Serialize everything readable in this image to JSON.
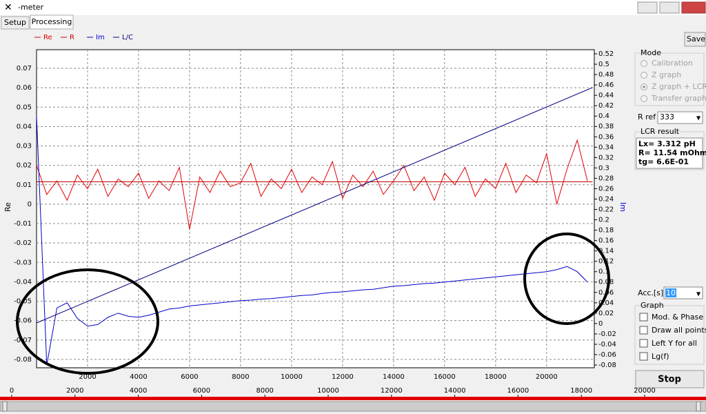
{
  "window": {
    "title": "-meter"
  },
  "tabs": [
    "Setup",
    "Processing"
  ],
  "chart_data": {
    "type": "line",
    "x": [
      0,
      400,
      800,
      1200,
      1600,
      2000,
      2400,
      2800,
      3200,
      3600,
      4000,
      4400,
      4800,
      5200,
      5600,
      6000,
      6400,
      6800,
      7200,
      7600,
      8000,
      8400,
      8800,
      9200,
      9600,
      10000,
      10400,
      10800,
      11200,
      11600,
      12000,
      12400,
      12800,
      13200,
      13600,
      14000,
      14400,
      14800,
      15200,
      15600,
      16000,
      16400,
      16800,
      17200,
      17600,
      18000,
      18400,
      18800,
      19200,
      19600,
      20000,
      20400,
      20800,
      21200,
      21600
    ],
    "series": [
      {
        "name": "Re",
        "color": "#e00000",
        "values": [
          0.02,
          0.005,
          0.012,
          0.002,
          0.015,
          0.008,
          0.018,
          0.004,
          0.013,
          0.009,
          0.016,
          0.003,
          0.012,
          0.007,
          0.019,
          -0.013,
          0.014,
          0.006,
          0.017,
          0.009,
          0.011,
          0.021,
          0.004,
          0.013,
          0.008,
          0.018,
          0.006,
          0.014,
          0.01,
          0.022,
          0.003,
          0.015,
          0.009,
          0.017,
          0.005,
          0.012,
          0.02,
          0.007,
          0.014,
          0.002,
          0.016,
          0.01,
          0.019,
          0.004,
          0.013,
          0.008,
          0.021,
          0.006,
          0.015,
          0.011,
          0.026,
          0.0,
          0.018,
          0.033,
          0.012
        ]
      },
      {
        "name": "R",
        "color": "#c00000",
        "x": [
          0,
          21800
        ],
        "values": [
          0.0115,
          0.0115
        ]
      },
      {
        "name": "Im",
        "color": "#0000c8",
        "axis": "y2",
        "values": [
          0.4,
          -0.08,
          0.03,
          0.04,
          0.01,
          -0.005,
          -0.002,
          0.012,
          0.02,
          0.014,
          0.012,
          0.016,
          0.022,
          0.028,
          0.03,
          0.034,
          0.036,
          0.038,
          0.04,
          0.042,
          0.044,
          0.045,
          0.047,
          0.048,
          0.05,
          0.052,
          0.054,
          0.055,
          0.058,
          0.06,
          0.061,
          0.063,
          0.065,
          0.066,
          0.069,
          0.072,
          0.073,
          0.075,
          0.077,
          0.078,
          0.08,
          0.082,
          0.084,
          0.086,
          0.088,
          0.09,
          0.092,
          0.094,
          0.096,
          0.098,
          0.1,
          0.104,
          0.11,
          0.1,
          0.08
        ]
      },
      {
        "name": "L/C",
        "color": "#000080",
        "axis": "y2",
        "x": [
          0,
          21800
        ],
        "values": [
          0.001,
          0.455
        ]
      }
    ],
    "xlim": [
      0,
      21870
    ],
    "xticks": [
      2000,
      4000,
      6000,
      8000,
      10000,
      12000,
      14000,
      16000,
      18000,
      20000
    ],
    "ylim": [
      -0.0843,
      0.0796
    ],
    "yticks": [
      -0.08,
      -0.07,
      -0.06,
      -0.05,
      -0.04,
      -0.03,
      -0.02,
      -0.01,
      0,
      0.01,
      0.02,
      0.03,
      0.04,
      0.05,
      0.06,
      0.07
    ],
    "y2lim": [
      -0.0853,
      0.528
    ],
    "y2ticks": [
      -0.08,
      -0.06,
      -0.04,
      -0.02,
      0,
      0.02,
      0.04,
      0.06,
      0.08,
      0.1,
      0.12,
      0.14,
      0.16,
      0.18,
      0.2,
      0.22,
      0.24,
      0.26,
      0.28,
      0.3,
      0.32,
      0.34,
      0.36,
      0.38,
      0.4,
      0.42,
      0.44,
      0.46,
      0.48,
      0.5,
      0.52
    ],
    "y_label": "Re",
    "y2_label": "Im",
    "grid": true
  },
  "slider": {
    "xlim": [
      0,
      20000
    ],
    "ticks": [
      0,
      2000,
      4000,
      6000,
      8000,
      10000,
      12000,
      14000,
      16000,
      18000,
      20000
    ]
  },
  "panel": {
    "save": "Save",
    "mode": {
      "title": "Mode",
      "options": [
        "Calibration",
        "Z graph",
        "Z graph + LCR",
        "Transfer graph"
      ]
    },
    "rref": {
      "label": "R ref",
      "value": "333"
    },
    "lcr": {
      "title": "LCR result",
      "lines": [
        "Lx= 3.312 pH",
        "R= 11.54 mOhm",
        "tg= 6.6E-01"
      ]
    },
    "acc": {
      "label": "Acc.[s]",
      "value": "10"
    },
    "graph": {
      "title": "Graph",
      "options": [
        "Mod. & Phase",
        "Draw all points",
        "Left Y for all",
        "Lg(f)"
      ]
    },
    "stop": "Stop"
  }
}
